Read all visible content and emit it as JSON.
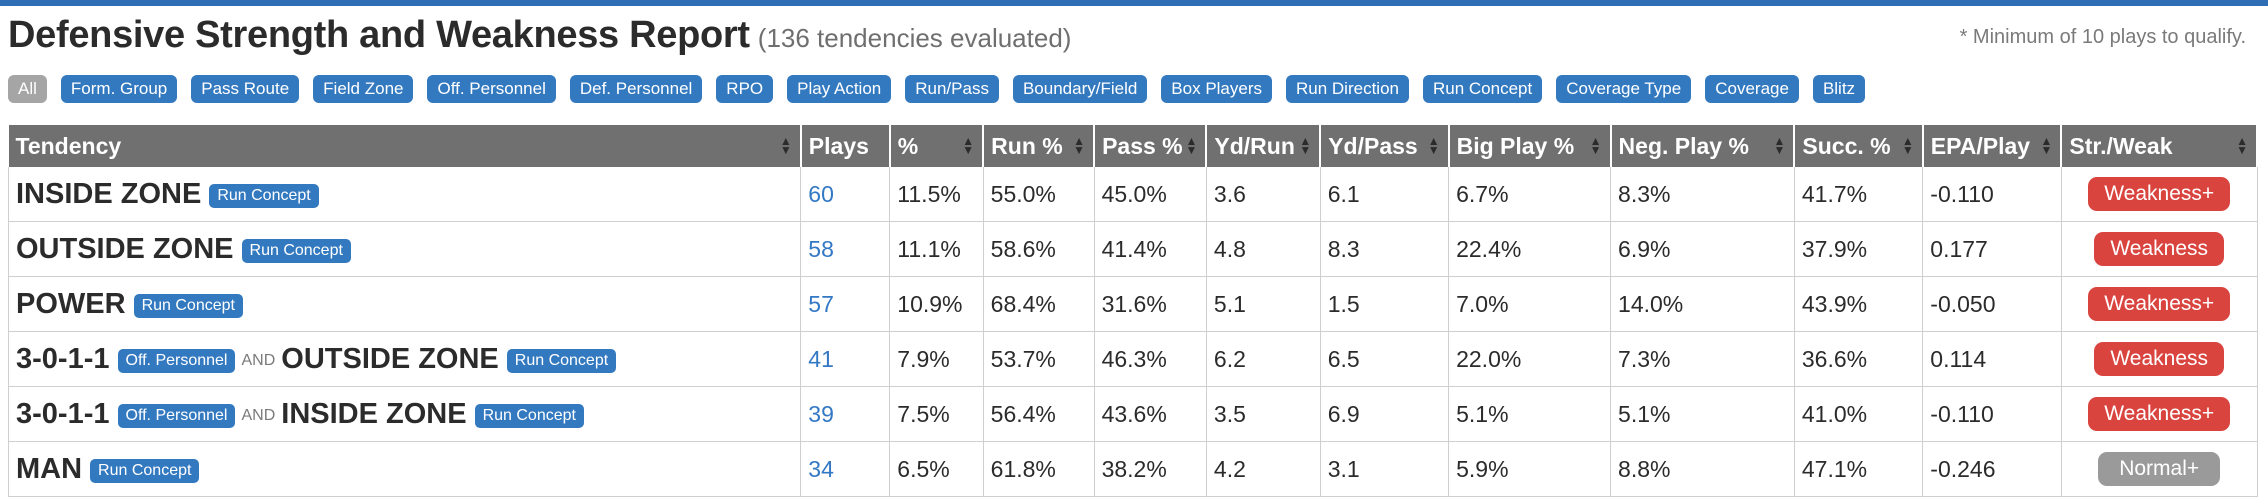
{
  "header": {
    "title": "Defensive Strength and Weakness Report",
    "subtitle": "(136 tendencies evaluated)",
    "note": "* Minimum of 10 plays to qualify."
  },
  "filters": [
    "All",
    "Form. Group",
    "Pass Route",
    "Field Zone",
    "Off. Personnel",
    "Def. Personnel",
    "RPO",
    "Play Action",
    "Run/Pass",
    "Boundary/Field",
    "Box Players",
    "Run Direction",
    "Run Concept",
    "Coverage Type",
    "Coverage",
    "Blitz"
  ],
  "table": {
    "columns": [
      "Tendency",
      "Plays",
      "%",
      "Run %",
      "Pass %",
      "Yd/Run",
      "Yd/Pass",
      "Big Play %",
      "Neg. Play %",
      "Succ. %",
      "EPA/Play",
      "Str./Weak"
    ],
    "rows": [
      {
        "parts": [
          {
            "name": "INSIDE ZONE",
            "tag": "Run Concept"
          }
        ],
        "plays": "60",
        "pct": "11.5%",
        "run": "55.0%",
        "pass": "45.0%",
        "ydrun": "3.6",
        "ydpass": "6.1",
        "big": "6.7%",
        "neg": "8.3%",
        "succ": "41.7%",
        "epa": "-0.110",
        "label": "Weakness+",
        "color": "#d9443f"
      },
      {
        "parts": [
          {
            "name": "OUTSIDE ZONE",
            "tag": "Run Concept"
          }
        ],
        "plays": "58",
        "pct": "11.1%",
        "run": "58.6%",
        "pass": "41.4%",
        "ydrun": "4.8",
        "ydpass": "8.3",
        "big": "22.4%",
        "neg": "6.9%",
        "succ": "37.9%",
        "epa": "0.177",
        "label": "Weakness",
        "color": "#d9443f"
      },
      {
        "parts": [
          {
            "name": "POWER",
            "tag": "Run Concept"
          }
        ],
        "plays": "57",
        "pct": "10.9%",
        "run": "68.4%",
        "pass": "31.6%",
        "ydrun": "5.1",
        "ydpass": "1.5",
        "big": "7.0%",
        "neg": "14.0%",
        "succ": "43.9%",
        "epa": "-0.050",
        "label": "Weakness+",
        "color": "#d9443f"
      },
      {
        "parts": [
          {
            "name": "3-0-1-1",
            "tag": "Off. Personnel"
          },
          {
            "name": "OUTSIDE ZONE",
            "tag": "Run Concept"
          }
        ],
        "and": "AND",
        "plays": "41",
        "pct": "7.9%",
        "run": "53.7%",
        "pass": "46.3%",
        "ydrun": "6.2",
        "ydpass": "6.5",
        "big": "22.0%",
        "neg": "7.3%",
        "succ": "36.6%",
        "epa": "0.114",
        "label": "Weakness",
        "color": "#d9443f"
      },
      {
        "parts": [
          {
            "name": "3-0-1-1",
            "tag": "Off. Personnel"
          },
          {
            "name": "INSIDE ZONE",
            "tag": "Run Concept"
          }
        ],
        "and": "AND",
        "plays": "39",
        "pct": "7.5%",
        "run": "56.4%",
        "pass": "43.6%",
        "ydrun": "3.5",
        "ydpass": "6.9",
        "big": "5.1%",
        "neg": "5.1%",
        "succ": "41.0%",
        "epa": "-0.110",
        "label": "Weakness+",
        "color": "#d9443f"
      },
      {
        "parts": [
          {
            "name": "MAN",
            "tag": "Run Concept"
          }
        ],
        "plays": "34",
        "pct": "6.5%",
        "run": "61.8%",
        "pass": "38.2%",
        "ydrun": "4.2",
        "ydpass": "3.1",
        "big": "5.9%",
        "neg": "8.8%",
        "succ": "47.1%",
        "epa": "-0.246",
        "label": "Normal+",
        "color": "#9a9a9a"
      }
    ]
  }
}
